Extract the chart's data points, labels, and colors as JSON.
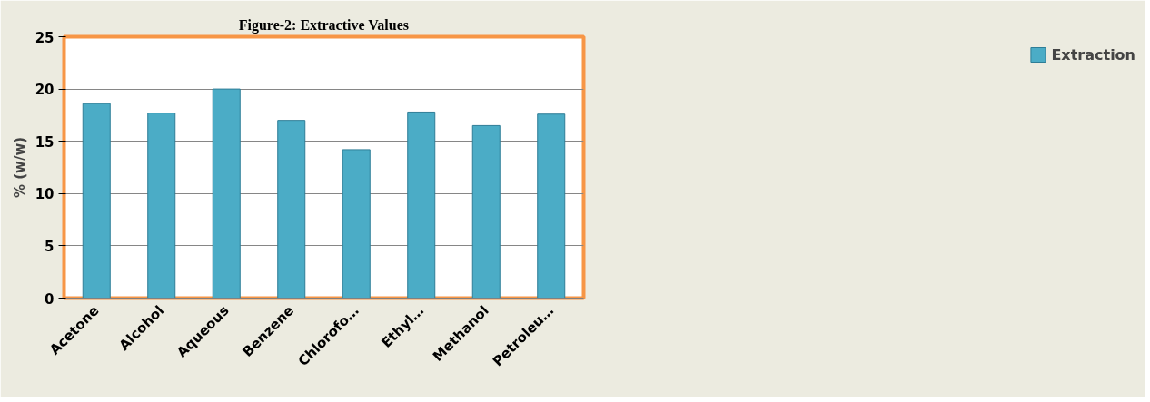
{
  "chart_data": {
    "type": "bar",
    "title": "Figure-2: Extractive Values",
    "ylabel": "% (w/w)",
    "categories": [
      "Acetone",
      "Alcohol",
      "Aqueous",
      "Benzene",
      "Chlorofo…",
      "Ethyl…",
      "Methanol",
      "Petroleu…"
    ],
    "series": [
      {
        "name": "Extraction",
        "color": "#4bacc6",
        "values": [
          18.6,
          17.7,
          20.0,
          17.0,
          14.2,
          17.8,
          16.5,
          17.6
        ]
      }
    ],
    "ylim": [
      0,
      25
    ],
    "yticks": [
      0,
      5,
      10,
      15,
      20,
      25
    ],
    "grid": "y",
    "legend": "right"
  }
}
